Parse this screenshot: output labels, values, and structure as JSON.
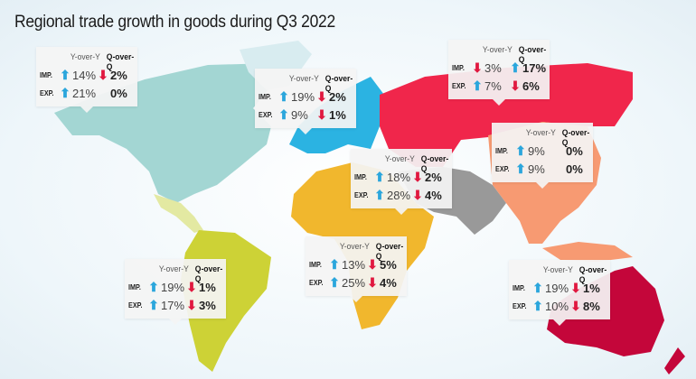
{
  "title": "Regional trade growth in goods during Q3 2022",
  "headers": {
    "yoy": "Y-over-Y",
    "qoq": "Q-over-Q"
  },
  "row_labels": {
    "imp": "IMP.",
    "exp": "EXP."
  },
  "colors": {
    "up": "#2ba6dc",
    "down": "#e0183f",
    "north_america": "#a3d6d3",
    "europe": "#2bb3e2",
    "cis": "#f0264b",
    "middle_east": "#999999",
    "africa": "#f1b72d",
    "asia": "#f79a72",
    "oceania": "#c4063a",
    "south_america": "#cdd236"
  },
  "regions": [
    {
      "region": "north-america",
      "imp": {
        "yoy": {
          "dir": "up",
          "value": "14%"
        },
        "qoq": {
          "dir": "down",
          "value": "2%"
        }
      },
      "exp": {
        "yoy": {
          "dir": "up",
          "value": "21%"
        },
        "qoq": {
          "dir": "none",
          "value": "0%"
        }
      }
    },
    {
      "region": "europe",
      "imp": {
        "yoy": {
          "dir": "up",
          "value": "19%"
        },
        "qoq": {
          "dir": "down",
          "value": "2%"
        }
      },
      "exp": {
        "yoy": {
          "dir": "up",
          "value": "9%"
        },
        "qoq": {
          "dir": "down",
          "value": "1%"
        }
      }
    },
    {
      "region": "cis",
      "imp": {
        "yoy": {
          "dir": "down",
          "value": "3%"
        },
        "qoq": {
          "dir": "up",
          "value": "17%"
        }
      },
      "exp": {
        "yoy": {
          "dir": "up",
          "value": "7%"
        },
        "qoq": {
          "dir": "down",
          "value": "6%"
        }
      }
    },
    {
      "region": "middle-east",
      "imp": {
        "yoy": {
          "dir": "up",
          "value": "18%"
        },
        "qoq": {
          "dir": "down",
          "value": "2%"
        }
      },
      "exp": {
        "yoy": {
          "dir": "up",
          "value": "28%"
        },
        "qoq": {
          "dir": "down",
          "value": "4%"
        }
      }
    },
    {
      "region": "east-asia",
      "imp": {
        "yoy": {
          "dir": "up",
          "value": "9%"
        },
        "qoq": {
          "dir": "none",
          "value": "0%"
        }
      },
      "exp": {
        "yoy": {
          "dir": "up",
          "value": "9%"
        },
        "qoq": {
          "dir": "none",
          "value": "0%"
        }
      }
    },
    {
      "region": "africa",
      "imp": {
        "yoy": {
          "dir": "up",
          "value": "13%"
        },
        "qoq": {
          "dir": "down",
          "value": "5%"
        }
      },
      "exp": {
        "yoy": {
          "dir": "up",
          "value": "25%"
        },
        "qoq": {
          "dir": "down",
          "value": "4%"
        }
      }
    },
    {
      "region": "south-america",
      "imp": {
        "yoy": {
          "dir": "up",
          "value": "19%"
        },
        "qoq": {
          "dir": "down",
          "value": "1%"
        }
      },
      "exp": {
        "yoy": {
          "dir": "up",
          "value": "17%"
        },
        "qoq": {
          "dir": "down",
          "value": "3%"
        }
      }
    },
    {
      "region": "oceania",
      "imp": {
        "yoy": {
          "dir": "up",
          "value": "19%"
        },
        "qoq": {
          "dir": "down",
          "value": "1%"
        }
      },
      "exp": {
        "yoy": {
          "dir": "up",
          "value": "10%"
        },
        "qoq": {
          "dir": "down",
          "value": "8%"
        }
      }
    }
  ]
}
